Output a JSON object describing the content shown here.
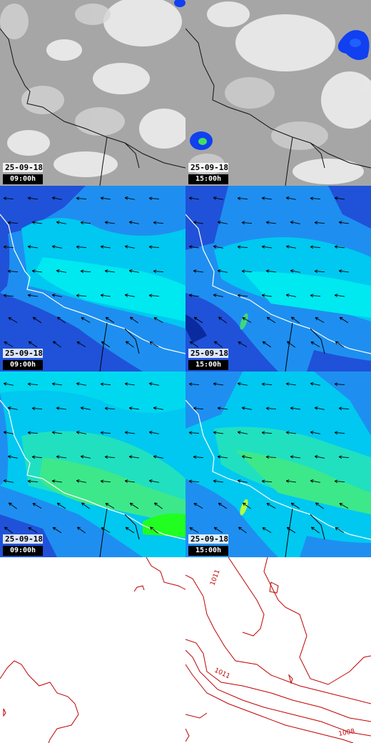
{
  "rows": [
    {
      "name": "cloud",
      "panels": [
        {
          "date": "25-09-18",
          "time": "09:00h"
        },
        {
          "date": "25-09-18",
          "time": "15:00h"
        }
      ]
    },
    {
      "name": "wind-a",
      "panels": [
        {
          "date": "25-09-18",
          "time": "09:00h"
        },
        {
          "date": "25-09-18",
          "time": "15:00h"
        }
      ]
    },
    {
      "name": "wind-b",
      "panels": [
        {
          "date": "25-09-18",
          "time": "09:00h"
        },
        {
          "date": "25-09-18",
          "time": "15:00h"
        }
      ]
    }
  ],
  "pressure": {
    "labels": [
      "1011",
      "1011",
      "1008"
    ],
    "color": "#c00000"
  },
  "colors": {
    "cloud_bg": "#a8a8a8",
    "wind_deep": "#1f52d8",
    "wind_mid": "#1e8ff0",
    "wind_light": "#00e8f0",
    "wind_green": "#3de88a",
    "coast": "#ffffff",
    "border": "#000000"
  }
}
